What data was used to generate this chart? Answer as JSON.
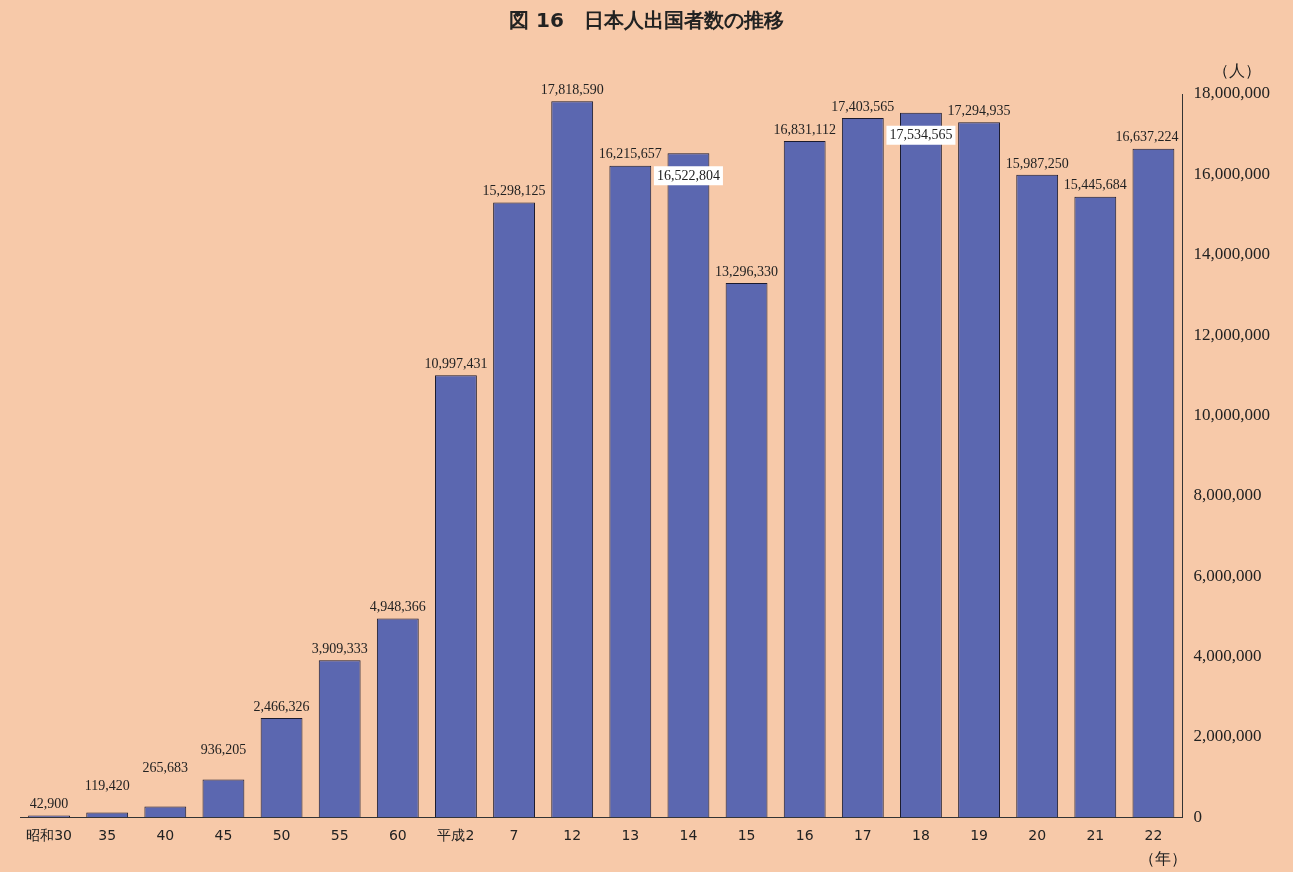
{
  "chart_data": {
    "type": "bar",
    "title": "図 16　日本人出国者数の推移",
    "ylabel": "（人）",
    "xlabel": "（年）",
    "categories": [
      "昭和30",
      "35",
      "40",
      "45",
      "50",
      "55",
      "60",
      "平成2",
      "7",
      "12",
      "13",
      "14",
      "15",
      "16",
      "17",
      "18",
      "19",
      "20",
      "21",
      "22"
    ],
    "values": [
      42900,
      119420,
      265683,
      936205,
      2466326,
      3909333,
      4948366,
      10997431,
      15298125,
      17818590,
      16215657,
      16522804,
      13296330,
      16831112,
      17403565,
      17534565,
      17294935,
      15987250,
      15445684,
      16637224
    ],
    "value_labels": [
      "42,900",
      "119,420",
      "265,683",
      "936,205",
      "2,466,326",
      "3,909,333",
      "4,948,366",
      "10,997,431",
      "15,298,125",
      "17,818,590",
      "16,215,657",
      "16,522,804",
      "13,296,330",
      "16,831,112",
      "17,403,565",
      "17,534,565",
      "17,294,935",
      "15,987,250",
      "15,445,684",
      "16,637,224"
    ],
    "color": "#5b67b0",
    "ylim": [
      0,
      18000000
    ],
    "yticks": [
      0,
      {
        "value": 2000000,
        "label": "2,000,000"
      },
      {
        "value": 4000000,
        "label": "4,000,000"
      },
      {
        "value": 6000000,
        "label": "6,000,000"
      },
      {
        "value": 8000000,
        "label": "8,000,000"
      },
      {
        "value": 10000000,
        "label": "10,000,000"
      },
      {
        "value": 12000000,
        "label": "12,000,000"
      },
      {
        "value": 14000000,
        "label": "14,000,000"
      },
      {
        "value": 16000000,
        "label": "16,000,000"
      },
      {
        "value": 18000000,
        "label": "18,000,000"
      }
    ],
    "grid": false,
    "legend": false
  }
}
